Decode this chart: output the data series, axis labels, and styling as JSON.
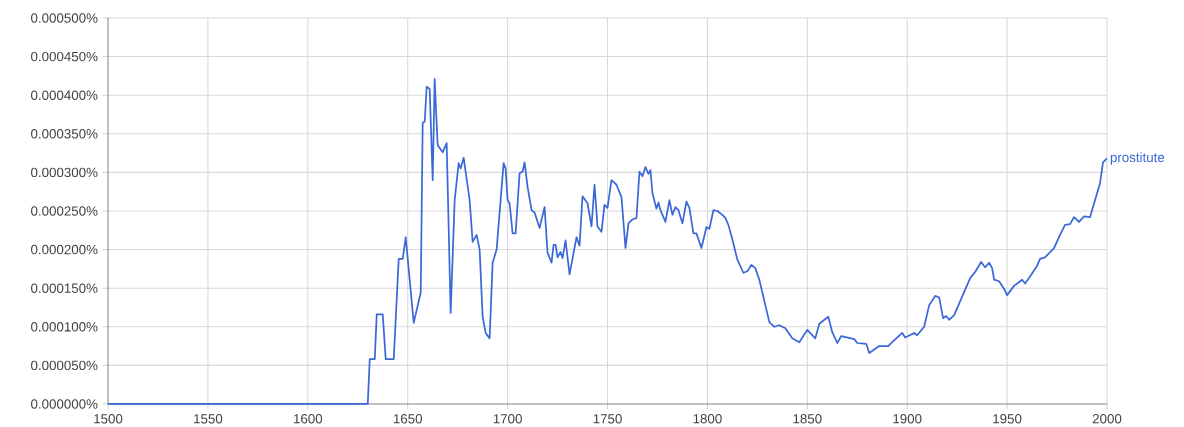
{
  "chart_data": {
    "type": "line",
    "xlim": [
      1500,
      2000
    ],
    "ylim": [
      0,
      0.0005
    ],
    "grid": true,
    "legend": false,
    "marker": "none",
    "line_style": "solid",
    "xticks": [
      1500,
      1550,
      1600,
      1650,
      1700,
      1750,
      1800,
      1850,
      1900,
      1950,
      2000
    ],
    "yticks": [
      {
        "value": 0,
        "label": "0.000000%"
      },
      {
        "value": 5e-05,
        "label": "0.000050%"
      },
      {
        "value": 0.0001,
        "label": "0.000100%"
      },
      {
        "value": 0.00015,
        "label": "0.000150%"
      },
      {
        "value": 0.0002,
        "label": "0.000200%"
      },
      {
        "value": 0.00025,
        "label": "0.000250%"
      },
      {
        "value": 0.0003,
        "label": "0.000300%"
      },
      {
        "value": 0.00035,
        "label": "0.000350%"
      },
      {
        "value": 0.0004,
        "label": "0.000400%"
      },
      {
        "value": 0.00045,
        "label": "0.000450%"
      },
      {
        "value": 0.0005,
        "label": "0.000500%"
      }
    ],
    "x": [
      1500,
      1630,
      1631,
      1633.5,
      1634.5,
      1637.5,
      1639,
      1643,
      1645.5,
      1647.5,
      1649,
      1653,
      1656.5,
      1657.5,
      1658.5,
      1659.5,
      1661,
      1662.5,
      1663.5,
      1665,
      1667.5,
      1669.5,
      1671.5,
      1673.5,
      1675.5,
      1676.5,
      1678,
      1681,
      1682.5,
      1684.5,
      1686,
      1687.5,
      1689,
      1691,
      1692.5,
      1694.5,
      1696.5,
      1698,
      1699,
      1700,
      1701,
      1702.5,
      1704,
      1706,
      1707.5,
      1708.5,
      1710,
      1712,
      1713.5,
      1716,
      1718.5,
      1720,
      1722,
      1723,
      1724,
      1725,
      1726.5,
      1727.5,
      1729,
      1731,
      1734.5,
      1736,
      1737.5,
      1740,
      1742,
      1743.5,
      1745,
      1747,
      1748.5,
      1750,
      1752,
      1754.5,
      1757,
      1759,
      1760.5,
      1762.5,
      1764.5,
      1766,
      1767.5,
      1769,
      1770.5,
      1771.5,
      1772.5,
      1774.5,
      1775.5,
      1776.5,
      1779,
      1781,
      1782.5,
      1784,
      1785.5,
      1787.5,
      1789.5,
      1791,
      1793,
      1794.5,
      1797,
      1799.5,
      1801,
      1803,
      1805,
      1807.5,
      1809,
      1810.5,
      1812.5,
      1815,
      1818,
      1820,
      1822,
      1824,
      1826,
      1831,
      1833.5,
      1836,
      1839,
      1842.5,
      1846,
      1850,
      1854,
      1856,
      1860.5,
      1862.5,
      1865,
      1867,
      1873.5,
      1875,
      1879.5,
      1881,
      1886,
      1890.5,
      1892.5,
      1897.5,
      1899,
      1903.5,
      1905,
      1908.5,
      1911,
      1914,
      1916,
      1918,
      1919.5,
      1921,
      1923.5,
      1931.5,
      1934,
      1937,
      1939,
      1941,
      1942.5,
      1943.5,
      1946,
      1948.5,
      1950,
      1953.5,
      1957.5,
      1959,
      1962,
      1965,
      1966.5,
      1969,
      1973.5,
      1976.5,
      1979,
      1981.5,
      1983.5,
      1986,
      1988.5,
      1991.5,
      1994,
      1996.5,
      1998,
      2000
    ],
    "series": [
      {
        "name": "prostitute",
        "color": "#3b68d8",
        "values": [
          0,
          0,
          5.8e-05,
          5.8e-05,
          0.000116,
          0.000116,
          5.8e-05,
          5.8e-05,
          0.000188,
          0.000188,
          0.000216,
          0.000105,
          0.000144,
          0.000364,
          0.000366,
          0.000411,
          0.000408,
          0.00029,
          0.000421,
          0.000335,
          0.000326,
          0.000338,
          0.000118,
          0.000264,
          0.000312,
          0.000305,
          0.000319,
          0.000264,
          0.00021,
          0.000219,
          0.0002,
          0.000113,
          9.2e-05,
          8.5e-05,
          0.000183,
          0.0002,
          0.000264,
          0.000312,
          0.000305,
          0.000264,
          0.00026,
          0.000221,
          0.000221,
          0.000299,
          0.000301,
          0.000313,
          0.000281,
          0.000251,
          0.000248,
          0.000228,
          0.000255,
          0.000196,
          0.000183,
          0.000206,
          0.000206,
          0.00019,
          0.000197,
          0.000189,
          0.000212,
          0.000168,
          0.000216,
          0.000205,
          0.000269,
          0.00026,
          0.00023,
          0.000284,
          0.00023,
          0.000223,
          0.000258,
          0.000254,
          0.00029,
          0.000284,
          0.000268,
          0.000202,
          0.000234,
          0.000239,
          0.000241,
          0.000301,
          0.000295,
          0.000307,
          0.000298,
          0.000303,
          0.000273,
          0.000253,
          0.000261,
          0.000251,
          0.000236,
          0.000264,
          0.000245,
          0.000255,
          0.000251,
          0.000234,
          0.000262,
          0.000254,
          0.000221,
          0.000221,
          0.000202,
          0.000229,
          0.000227,
          0.000251,
          0.00025,
          0.000245,
          0.000241,
          0.000232,
          0.000213,
          0.000187,
          0.00017,
          0.000172,
          0.00018,
          0.000176,
          0.000161,
          0.000106,
          0.0001,
          0.000102,
          9.8e-05,
          8.5e-05,
          8e-05,
          9.6e-05,
          8.5e-05,
          0.000104,
          0.000113,
          9.3e-05,
          7.9e-05,
          8.8e-05,
          8.4e-05,
          7.9e-05,
          7.8e-05,
          6.6e-05,
          7.5e-05,
          7.5e-05,
          8e-05,
          9.2e-05,
          8.6e-05,
          9.2e-05,
          8.9e-05,
          0.0001,
          0.000128,
          0.00014,
          0.000138,
          0.000111,
          0.000114,
          0.000109,
          0.000115,
          0.000163,
          0.000171,
          0.000184,
          0.000177,
          0.000183,
          0.000176,
          0.000161,
          0.000159,
          0.000149,
          0.000141,
          0.000153,
          0.000161,
          0.000156,
          0.000167,
          0.000179,
          0.000188,
          0.00019,
          0.000202,
          0.000219,
          0.000232,
          0.000233,
          0.000242,
          0.000236,
          0.000243,
          0.000242,
          0.000264,
          0.000286,
          0.000313,
          0.000318
        ]
      }
    ]
  }
}
